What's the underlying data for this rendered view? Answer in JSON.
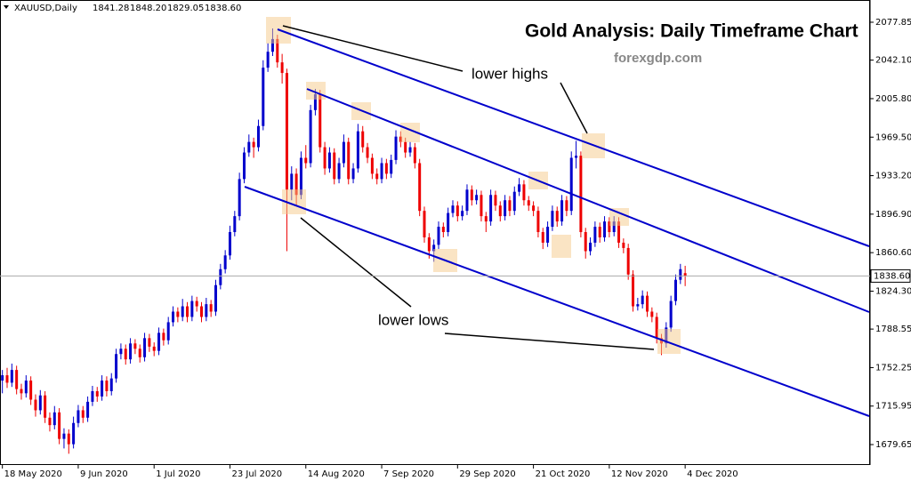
{
  "chart_data": {
    "type": "candlestick",
    "symbol": "XAUUSD,Daily",
    "last_candle_labels": [
      "1841.28",
      "1848.20",
      "1829.05",
      "1838.60"
    ],
    "title": "Gold Analysis: Daily Timeframe Chart",
    "subtitle": "forexgdp.com",
    "annotations": [
      "lower highs",
      "lower lows"
    ],
    "up_color": "#0000cc",
    "down_color": "#ee0000",
    "ylim": [
      1660.4,
      2098.8
    ],
    "yticks": [
      {
        "value": 2077.85,
        "label": "2077.85"
      },
      {
        "value": 2042.1,
        "label": "2042.10"
      },
      {
        "value": 2005.8,
        "label": "2005.80"
      },
      {
        "value": 1969.5,
        "label": "1969.50"
      },
      {
        "value": 1933.2,
        "label": "1933.20"
      },
      {
        "value": 1896.9,
        "label": "1896.90"
      },
      {
        "value": 1860.6,
        "label": "1860.60"
      },
      {
        "value": 1824.3,
        "label": "1824.30"
      },
      {
        "value": 1788.55,
        "label": "1788.55"
      },
      {
        "value": 1752.25,
        "label": "1752.25"
      },
      {
        "value": 1715.95,
        "label": "1715.95"
      },
      {
        "value": 1679.65,
        "label": "1679.65"
      }
    ],
    "xticks": [
      {
        "value": 0,
        "label": "18 May 2020"
      },
      {
        "value": 16,
        "label": "9 Jun 2020"
      },
      {
        "value": 32,
        "label": "1 Jul 2020"
      },
      {
        "value": 48,
        "label": "23 Jul 2020"
      },
      {
        "value": 64,
        "label": "14 Aug 2020"
      },
      {
        "value": 80,
        "label": "7 Sep 2020"
      },
      {
        "value": 96,
        "label": "29 Sep 2020"
      },
      {
        "value": 112,
        "label": "21 Oct 2020"
      },
      {
        "value": 128,
        "label": "12 Nov 2020"
      },
      {
        "value": 144,
        "label": "4 Dec 2020"
      }
    ],
    "xlim": [
      -0.5,
      183
    ],
    "candles": [
      [
        1740,
        1750,
        1728,
        1745
      ],
      [
        1745,
        1752,
        1733,
        1738
      ],
      [
        1738,
        1756,
        1734,
        1750
      ],
      [
        1750,
        1754,
        1727,
        1732
      ],
      [
        1732,
        1737,
        1722,
        1728
      ],
      [
        1728,
        1745,
        1724,
        1740
      ],
      [
        1740,
        1744,
        1717,
        1722
      ],
      [
        1722,
        1727,
        1706,
        1712
      ],
      [
        1712,
        1731,
        1708,
        1726
      ],
      [
        1726,
        1730,
        1700,
        1705
      ],
      [
        1705,
        1710,
        1692,
        1698
      ],
      [
        1698,
        1716,
        1694,
        1710
      ],
      [
        1710,
        1714,
        1680,
        1685
      ],
      [
        1685,
        1695,
        1676,
        1690
      ],
      [
        1690,
        1694,
        1671,
        1680
      ],
      [
        1680,
        1706,
        1676,
        1700
      ],
      [
        1700,
        1717,
        1696,
        1712
      ],
      [
        1712,
        1716,
        1700,
        1705
      ],
      [
        1705,
        1725,
        1701,
        1720
      ],
      [
        1720,
        1735,
        1716,
        1730
      ],
      [
        1730,
        1734,
        1720,
        1725
      ],
      [
        1725,
        1745,
        1721,
        1740
      ],
      [
        1740,
        1744,
        1725,
        1730
      ],
      [
        1730,
        1747,
        1726,
        1742
      ],
      [
        1742,
        1770,
        1738,
        1765
      ],
      [
        1765,
        1775,
        1760,
        1770
      ],
      [
        1770,
        1774,
        1755,
        1760
      ],
      [
        1760,
        1780,
        1756,
        1775
      ],
      [
        1775,
        1779,
        1765,
        1770
      ],
      [
        1770,
        1774,
        1757,
        1762
      ],
      [
        1762,
        1785,
        1758,
        1780
      ],
      [
        1780,
        1784,
        1767,
        1772
      ],
      [
        1772,
        1776,
        1763,
        1768
      ],
      [
        1768,
        1790,
        1764,
        1785
      ],
      [
        1785,
        1789,
        1773,
        1778
      ],
      [
        1778,
        1800,
        1774,
        1795
      ],
      [
        1795,
        1810,
        1791,
        1805
      ],
      [
        1805,
        1809,
        1795,
        1800
      ],
      [
        1800,
        1817,
        1796,
        1810
      ],
      [
        1810,
        1814,
        1795,
        1800
      ],
      [
        1800,
        1820,
        1796,
        1815
      ],
      [
        1815,
        1819,
        1805,
        1810
      ],
      [
        1810,
        1814,
        1795,
        1800
      ],
      [
        1800,
        1818,
        1796,
        1812
      ],
      [
        1812,
        1816,
        1800,
        1805
      ],
      [
        1805,
        1835,
        1801,
        1830
      ],
      [
        1830,
        1850,
        1826,
        1845
      ],
      [
        1845,
        1863,
        1841,
        1858
      ],
      [
        1858,
        1886,
        1854,
        1880
      ],
      [
        1880,
        1900,
        1876,
        1895
      ],
      [
        1895,
        1936,
        1891,
        1930
      ],
      [
        1930,
        1960,
        1926,
        1955
      ],
      [
        1955,
        1972,
        1951,
        1965
      ],
      [
        1965,
        1969,
        1950,
        1960
      ],
      [
        1960,
        1986,
        1956,
        1980
      ],
      [
        1980,
        2042,
        1976,
        2035
      ],
      [
        2035,
        2058,
        2031,
        2050
      ],
      [
        2050,
        2072,
        2046,
        2062
      ],
      [
        2062,
        2066,
        2035,
        2040
      ],
      [
        2040,
        2048,
        2020,
        2030
      ],
      [
        2030,
        2034,
        1862,
        1920
      ],
      [
        1920,
        1942,
        1910,
        1935
      ],
      [
        1935,
        1940,
        1905,
        1915
      ],
      [
        1915,
        1956,
        1911,
        1950
      ],
      [
        1950,
        1962,
        1940,
        1945
      ],
      [
        1945,
        2000,
        1941,
        1995
      ],
      [
        1995,
        2015,
        1990,
        2010
      ],
      [
        2010,
        2014,
        1955,
        1960
      ],
      [
        1960,
        1965,
        1934,
        1940
      ],
      [
        1940,
        1960,
        1936,
        1955
      ],
      [
        1955,
        1959,
        1925,
        1930
      ],
      [
        1930,
        1950,
        1926,
        1945
      ],
      [
        1945,
        1972,
        1941,
        1965
      ],
      [
        1965,
        1969,
        1925,
        1930
      ],
      [
        1930,
        1945,
        1926,
        1940
      ],
      [
        1940,
        1982,
        1936,
        1975
      ],
      [
        1975,
        1980,
        1955,
        1960
      ],
      [
        1960,
        1964,
        1945,
        1950
      ],
      [
        1950,
        1954,
        1930,
        1935
      ],
      [
        1935,
        1940,
        1925,
        1930
      ],
      [
        1930,
        1950,
        1926,
        1945
      ],
      [
        1945,
        1949,
        1930,
        1935
      ],
      [
        1935,
        1953,
        1931,
        1948
      ],
      [
        1948,
        1976,
        1944,
        1970
      ],
      [
        1970,
        1975,
        1960,
        1965
      ],
      [
        1965,
        1969,
        1950,
        1955
      ],
      [
        1955,
        1965,
        1951,
        1960
      ],
      [
        1960,
        1964,
        1940,
        1945
      ],
      [
        1945,
        1949,
        1895,
        1900
      ],
      [
        1900,
        1904,
        1870,
        1875
      ],
      [
        1875,
        1879,
        1855,
        1862
      ],
      [
        1862,
        1873,
        1852,
        1868
      ],
      [
        1868,
        1890,
        1864,
        1885
      ],
      [
        1885,
        1889,
        1875,
        1880
      ],
      [
        1880,
        1903,
        1876,
        1898
      ],
      [
        1898,
        1910,
        1894,
        1905
      ],
      [
        1905,
        1909,
        1890,
        1895
      ],
      [
        1895,
        1905,
        1891,
        1900
      ],
      [
        1900,
        1925,
        1896,
        1920
      ],
      [
        1920,
        1924,
        1905,
        1910
      ],
      [
        1910,
        1920,
        1906,
        1915
      ],
      [
        1915,
        1919,
        1890,
        1895
      ],
      [
        1895,
        1899,
        1880,
        1890
      ],
      [
        1890,
        1920,
        1886,
        1915
      ],
      [
        1915,
        1919,
        1900,
        1905
      ],
      [
        1905,
        1909,
        1890,
        1895
      ],
      [
        1895,
        1915,
        1891,
        1910
      ],
      [
        1910,
        1914,
        1895,
        1900
      ],
      [
        1900,
        1923,
        1896,
        1918
      ],
      [
        1918,
        1931,
        1914,
        1925
      ],
      [
        1925,
        1929,
        1905,
        1910
      ],
      [
        1910,
        1914,
        1900,
        1905
      ],
      [
        1905,
        1909,
        1895,
        1900
      ],
      [
        1900,
        1904,
        1875,
        1880
      ],
      [
        1880,
        1884,
        1864,
        1870
      ],
      [
        1870,
        1890,
        1866,
        1885
      ],
      [
        1885,
        1905,
        1881,
        1900
      ],
      [
        1900,
        1904,
        1885,
        1890
      ],
      [
        1890,
        1915,
        1886,
        1910
      ],
      [
        1910,
        1914,
        1895,
        1900
      ],
      [
        1900,
        1956,
        1896,
        1950
      ],
      [
        1950,
        1966,
        1940,
        1952
      ],
      [
        1952,
        1956,
        1875,
        1880
      ],
      [
        1880,
        1884,
        1855,
        1862
      ],
      [
        1862,
        1875,
        1858,
        1870
      ],
      [
        1870,
        1890,
        1866,
        1885
      ],
      [
        1885,
        1889,
        1870,
        1875
      ],
      [
        1875,
        1895,
        1871,
        1890
      ],
      [
        1890,
        1894,
        1875,
        1880
      ],
      [
        1880,
        1895,
        1876,
        1890
      ],
      [
        1890,
        1894,
        1865,
        1870
      ],
      [
        1870,
        1874,
        1860,
        1865
      ],
      [
        1865,
        1869,
        1835,
        1840
      ],
      [
        1840,
        1844,
        1805,
        1810
      ],
      [
        1810,
        1818,
        1806,
        1812
      ],
      [
        1812,
        1825,
        1808,
        1820
      ],
      [
        1820,
        1824,
        1800,
        1805
      ],
      [
        1805,
        1809,
        1795,
        1800
      ],
      [
        1800,
        1804,
        1775,
        1780
      ],
      [
        1780,
        1784,
        1764,
        1775
      ],
      [
        1775,
        1795,
        1771,
        1790
      ],
      [
        1790,
        1820,
        1786,
        1815
      ],
      [
        1815,
        1840,
        1811,
        1835
      ],
      [
        1835,
        1850,
        1831,
        1845
      ],
      [
        1841.28,
        1848.2,
        1829.05,
        1838.6
      ]
    ]
  }
}
